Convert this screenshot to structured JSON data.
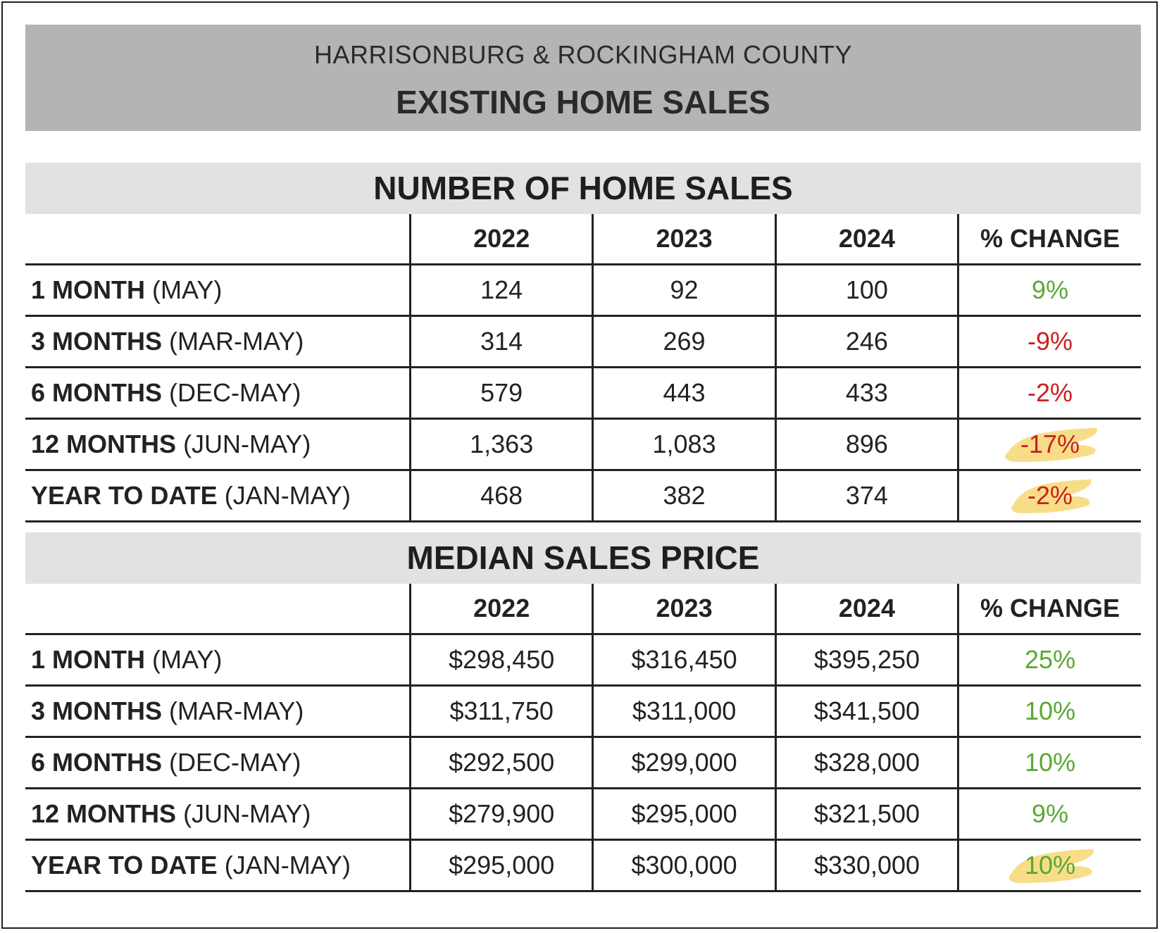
{
  "header": {
    "region": "HARRISONBURG & ROCKINGHAM COUNTY",
    "title": "EXISTING HOME SALES"
  },
  "colors": {
    "positive": "#5aa832",
    "negative": "#c8201f",
    "highlight": "#f7d774"
  },
  "sales": {
    "title": "NUMBER OF HOME SALES",
    "columns": [
      "2022",
      "2023",
      "2024",
      "% CHANGE"
    ],
    "rows": [
      {
        "label": "1 MONTH",
        "range": "(MAY)",
        "values": [
          "124",
          "92",
          "100"
        ],
        "change": "9%",
        "trend": "pos",
        "highlight": false
      },
      {
        "label": "3 MONTHS",
        "range": "(MAR-MAY)",
        "values": [
          "314",
          "269",
          "246"
        ],
        "change": "-9%",
        "trend": "neg",
        "highlight": false
      },
      {
        "label": "6 MONTHS",
        "range": "(DEC-MAY)",
        "values": [
          "579",
          "443",
          "433"
        ],
        "change": "-2%",
        "trend": "neg",
        "highlight": false
      },
      {
        "label": "12 MONTHS",
        "range": "(JUN-MAY)",
        "values": [
          "1,363",
          "1,083",
          "896"
        ],
        "change": "-17%",
        "trend": "neg",
        "highlight": true
      },
      {
        "label": "YEAR TO DATE",
        "range": "(JAN-MAY)",
        "values": [
          "468",
          "382",
          "374"
        ],
        "change": "-2%",
        "trend": "neg",
        "highlight": true
      }
    ]
  },
  "price": {
    "title": "MEDIAN SALES PRICE",
    "columns": [
      "2022",
      "2023",
      "2024",
      "% CHANGE"
    ],
    "rows": [
      {
        "label": "1 MONTH",
        "range": "(MAY)",
        "values": [
          "$298,450",
          "$316,450",
          "$395,250"
        ],
        "change": "25%",
        "trend": "pos",
        "highlight": false
      },
      {
        "label": "3 MONTHS",
        "range": "(MAR-MAY)",
        "values": [
          "$311,750",
          "$311,000",
          "$341,500"
        ],
        "change": "10%",
        "trend": "pos",
        "highlight": false
      },
      {
        "label": "6 MONTHS",
        "range": "(DEC-MAY)",
        "values": [
          "$292,500",
          "$299,000",
          "$328,000"
        ],
        "change": "10%",
        "trend": "pos",
        "highlight": false
      },
      {
        "label": "12 MONTHS",
        "range": "(JUN-MAY)",
        "values": [
          "$279,900",
          "$295,000",
          "$321,500"
        ],
        "change": "9%",
        "trend": "pos",
        "highlight": false
      },
      {
        "label": "YEAR TO DATE",
        "range": "(JAN-MAY)",
        "values": [
          "$295,000",
          "$300,000",
          "$330,000"
        ],
        "change": "10%",
        "trend": "pos",
        "highlight": true
      }
    ]
  }
}
